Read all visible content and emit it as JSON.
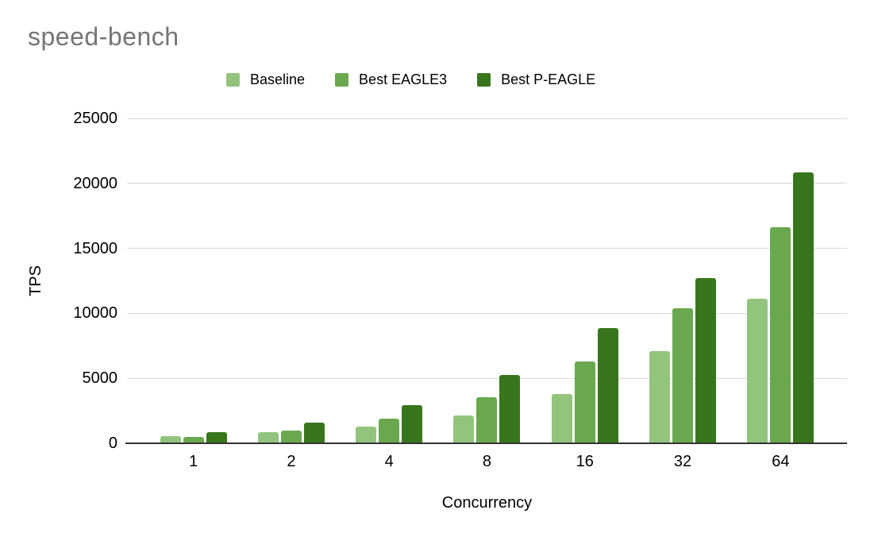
{
  "title": "speed-bench",
  "colors": {
    "background": "#ffffff",
    "title_text": "#757575",
    "axis_text": "#000000",
    "gridline": "#d9d9d9",
    "axis_line": "#333333",
    "series_baseline": "#93c47d",
    "series_eagle3": "#6aa84f",
    "series_peagle": "#38761d"
  },
  "chart_data": {
    "type": "bar",
    "title": "speed-bench",
    "xlabel": "Concurrency",
    "ylabel": "TPS",
    "categories": [
      "1",
      "2",
      "4",
      "8",
      "16",
      "32",
      "64"
    ],
    "series": [
      {
        "name": "Baseline",
        "color": "#93c47d",
        "values": [
          540,
          850,
          1260,
          2150,
          3800,
          7090,
          11100
        ]
      },
      {
        "name": "Best EAGLE3",
        "color": "#6aa84f",
        "values": [
          510,
          980,
          1890,
          3560,
          6270,
          10390,
          16650
        ]
      },
      {
        "name": "Best P-EAGLE",
        "color": "#38761d",
        "values": [
          870,
          1620,
          2930,
          5270,
          8860,
          12690,
          20850
        ]
      }
    ],
    "ylim": [
      0,
      25000
    ],
    "yticks": [
      0,
      5000,
      10000,
      15000,
      20000,
      25000
    ],
    "ytick_labels": [
      "0",
      "5000",
      "10000",
      "15000",
      "20000",
      "25000"
    ],
    "grid": true,
    "legend_position": "top"
  }
}
